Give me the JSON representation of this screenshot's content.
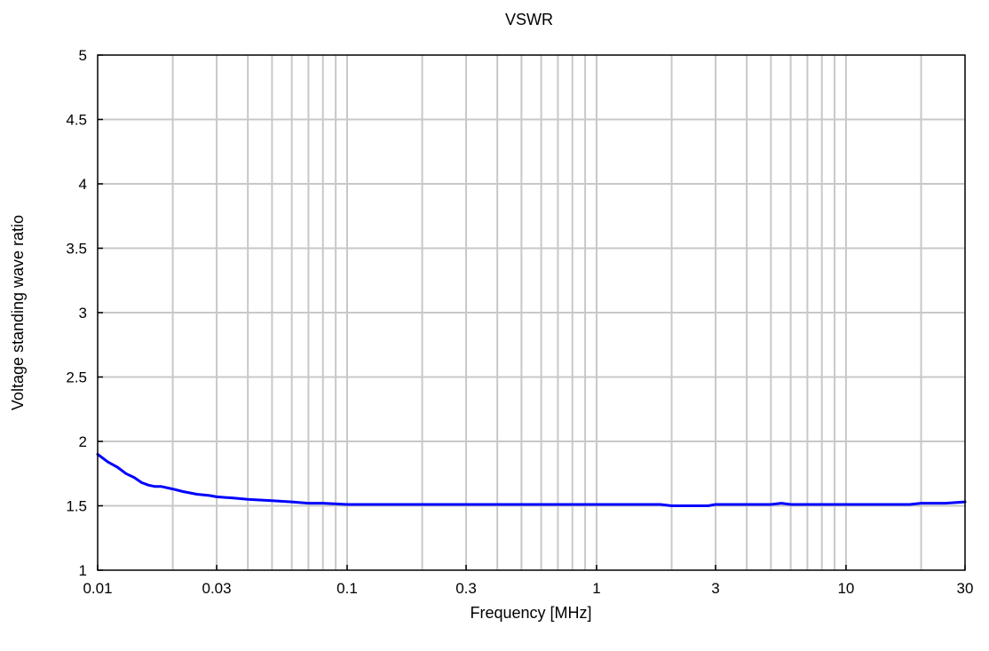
{
  "chart_data": {
    "type": "line",
    "title": "VSWR",
    "xlabel": "Frequency [MHz]",
    "ylabel": "Voltage standing wave ratio",
    "xscale": "log",
    "xlim": [
      0.01,
      30
    ],
    "ylim": [
      1,
      5
    ],
    "grid": true,
    "x_ticks": [
      0.01,
      0.03,
      0.1,
      0.3,
      1,
      3,
      10,
      30
    ],
    "x_tick_labels": [
      "0.01",
      "0.03",
      "0.1",
      "0.3",
      "1",
      "3",
      "10",
      "30"
    ],
    "y_ticks": [
      1,
      1.5,
      2,
      2.5,
      3,
      3.5,
      4,
      4.5,
      5
    ],
    "y_tick_labels": [
      "1",
      "1.5",
      "2",
      "2.5",
      "3",
      "3.5",
      "4",
      "4.5",
      "5"
    ],
    "x_minor_grid": [
      0.02,
      0.04,
      0.05,
      0.06,
      0.07,
      0.08,
      0.09,
      0.2,
      0.4,
      0.5,
      0.6,
      0.7,
      0.8,
      0.9,
      2,
      4,
      5,
      6,
      7,
      8,
      9,
      20
    ],
    "series": [
      {
        "color": "#0000ff",
        "x": [
          0.01,
          0.011,
          0.012,
          0.013,
          0.014,
          0.015,
          0.016,
          0.017,
          0.018,
          0.02,
          0.022,
          0.025,
          0.028,
          0.03,
          0.035,
          0.04,
          0.05,
          0.06,
          0.07,
          0.08,
          0.1,
          0.3,
          1,
          1.8,
          2,
          2.5,
          2.8,
          3,
          4,
          5,
          5.5,
          6,
          10,
          15,
          18,
          20,
          25,
          30
        ],
        "y": [
          1.9,
          1.84,
          1.8,
          1.75,
          1.72,
          1.68,
          1.66,
          1.65,
          1.65,
          1.63,
          1.61,
          1.59,
          1.58,
          1.57,
          1.56,
          1.55,
          1.54,
          1.53,
          1.52,
          1.52,
          1.51,
          1.51,
          1.51,
          1.51,
          1.5,
          1.5,
          1.5,
          1.51,
          1.51,
          1.51,
          1.52,
          1.51,
          1.51,
          1.51,
          1.51,
          1.52,
          1.52,
          1.53
        ]
      }
    ]
  }
}
